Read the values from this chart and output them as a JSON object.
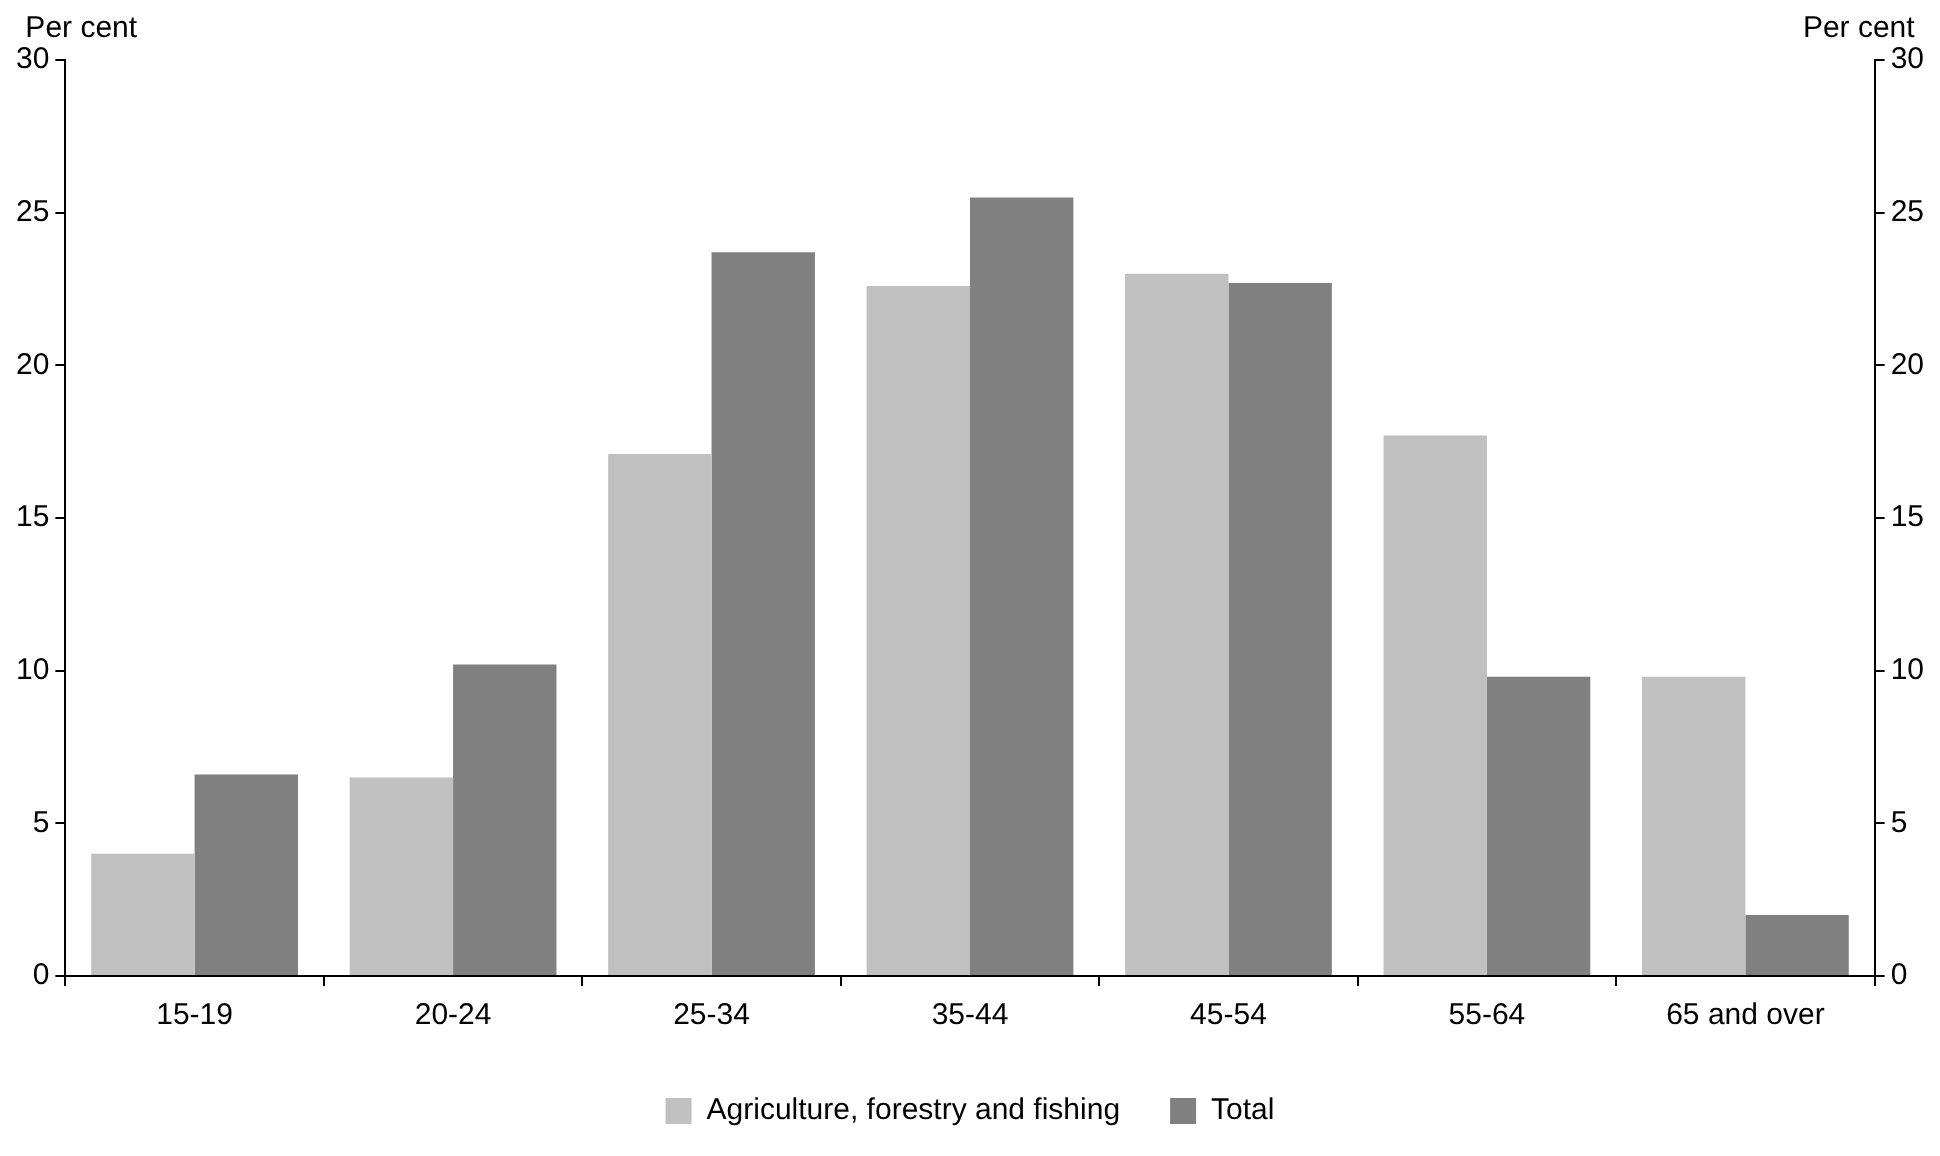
{
  "chart_data": {
    "type": "bar",
    "categories": [
      "15-19",
      "20-24",
      "25-34",
      "35-44",
      "45-54",
      "55-64",
      "65 and over"
    ],
    "series": [
      {
        "name": "Agriculture, forestry and fishing",
        "color": "#c0c0c0",
        "values": [
          4.0,
          6.5,
          17.1,
          22.6,
          23.0,
          17.7,
          9.8
        ]
      },
      {
        "name": "Total",
        "color": "#808080",
        "values": [
          6.6,
          10.2,
          23.7,
          25.5,
          22.7,
          9.8,
          2.0
        ]
      }
    ],
    "ylabel": "Per cent",
    "y2label": "Per cent",
    "ylim": [
      0,
      30
    ],
    "yticks": [
      0,
      5,
      10,
      15,
      20,
      25,
      30
    ],
    "y2lim": [
      0,
      30
    ],
    "y2ticks": [
      0,
      5,
      10,
      15,
      20,
      25,
      30
    ],
    "grid": false,
    "legend": "bottom"
  }
}
